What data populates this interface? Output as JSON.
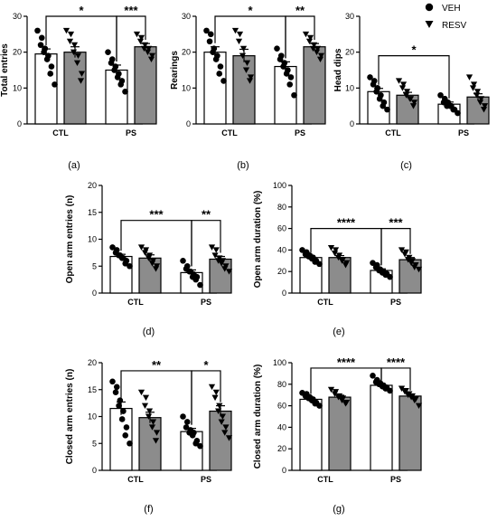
{
  "legend": {
    "items": [
      {
        "label": "VEH",
        "marker": "circle",
        "fill": "#ffffff"
      },
      {
        "label": "RESV",
        "marker": "triangle",
        "fill": "#8c8c8c"
      }
    ]
  },
  "chart_data": [
    {
      "type": "bar",
      "panel": "(a)",
      "ylabel": "Total entries",
      "ylim": [
        0,
        30
      ],
      "yticks": [
        0,
        10,
        20,
        30
      ],
      "categories": [
        "CTL",
        "PS"
      ],
      "series": [
        {
          "name": "VEH",
          "values": [
            19.5,
            15
          ],
          "sem": [
            1.4,
            1.4
          ],
          "points": [
            [
              26,
              24,
              22,
              21,
              20,
              19,
              18,
              16,
              14,
              11
            ],
            [
              20,
              18,
              17,
              16,
              15,
              14,
              13,
              12,
              11,
              9
            ]
          ]
        },
        {
          "name": "RESV",
          "values": [
            20,
            21.5
          ],
          "sem": [
            1.5,
            0.9
          ],
          "points": [
            [
              26,
              25,
              23,
              22,
              20,
              19,
              17,
              14,
              12
            ],
            [
              25,
              24,
              23,
              22,
              21,
              21,
              20,
              19,
              18
            ]
          ]
        }
      ],
      "significance": [
        {
          "from": [
            0,
            0
          ],
          "to": [
            1,
            0
          ],
          "label": "*",
          "y": 30
        },
        {
          "from": [
            1,
            0
          ],
          "to": [
            1,
            1
          ],
          "label": "***",
          "y": 30
        }
      ]
    },
    {
      "type": "bar",
      "panel": "(b)",
      "ylabel": "Rearings",
      "ylim": [
        0,
        30
      ],
      "yticks": [
        0,
        10,
        20,
        30
      ],
      "categories": [
        "CTL",
        "PS"
      ],
      "series": [
        {
          "name": "VEH",
          "values": [
            20,
            16
          ],
          "sem": [
            1.5,
            1.3
          ],
          "points": [
            [
              26,
              25,
              23,
              21,
              20,
              19,
              18,
              16,
              14,
              12
            ],
            [
              21,
              19,
              18,
              17,
              16,
              15,
              14,
              13,
              11,
              8
            ]
          ]
        },
        {
          "name": "RESV",
          "values": [
            19,
            21.5
          ],
          "sem": [
            1.8,
            0.9
          ],
          "points": [
            [
              26,
              25,
              23,
              21,
              19,
              17,
              15,
              13,
              12
            ],
            [
              25,
              24,
              23,
              22,
              21,
              21,
              20,
              19,
              18
            ]
          ]
        }
      ],
      "significance": [
        {
          "from": [
            0,
            0
          ],
          "to": [
            1,
            0
          ],
          "label": "*",
          "y": 30
        },
        {
          "from": [
            1,
            0
          ],
          "to": [
            1,
            1
          ],
          "label": "**",
          "y": 30
        }
      ]
    },
    {
      "type": "bar",
      "panel": "(c)",
      "ylabel": "Head dips",
      "ylim": [
        0,
        30
      ],
      "yticks": [
        0,
        10,
        20,
        30
      ],
      "categories": [
        "CTL",
        "PS"
      ],
      "series": [
        {
          "name": "VEH",
          "values": [
            9,
            5.5
          ],
          "sem": [
            0.9,
            0.6
          ],
          "points": [
            [
              13,
              12,
              11,
              10,
              9,
              8,
              7,
              6,
              5,
              4
            ],
            [
              8,
              7,
              6,
              6,
              5,
              5,
              5,
              4,
              4,
              3
            ]
          ]
        },
        {
          "name": "RESV",
          "values": [
            8,
            7.5
          ],
          "sem": [
            0.8,
            0.9
          ],
          "points": [
            [
              12,
              11,
              10,
              9,
              8,
              7,
              7,
              6,
              5
            ],
            [
              13,
              11,
              10,
              9,
              8,
              7,
              6,
              5,
              4
            ]
          ]
        }
      ],
      "significance": [
        {
          "from": [
            0,
            0
          ],
          "to": [
            1,
            0
          ],
          "label": "*",
          "y": 19
        }
      ]
    },
    {
      "type": "bar",
      "panel": "(d)",
      "ylabel": "Open arm entries (n)",
      "ylim": [
        0,
        20
      ],
      "yticks": [
        0,
        5,
        10,
        15,
        20
      ],
      "categories": [
        "CTL",
        "PS"
      ],
      "series": [
        {
          "name": "VEH",
          "values": [
            6.8,
            3.8
          ],
          "sem": [
            0.4,
            0.5
          ],
          "points": [
            [
              8.5,
              8,
              7.5,
              7,
              7,
              6.5,
              6.5,
              6,
              5.5,
              5
            ],
            [
              6,
              5,
              4.5,
              4,
              4,
              3.5,
              3,
              3,
              2.5,
              1.5
            ]
          ]
        },
        {
          "name": "RESV",
          "values": [
            6.5,
            6.3
          ],
          "sem": [
            0.6,
            0.5
          ],
          "points": [
            [
              8.5,
              8,
              7.5,
              7,
              6.5,
              6,
              5.5,
              5,
              4.5
            ],
            [
              8.5,
              8,
              7,
              6.5,
              6,
              6,
              5.5,
              5,
              4.5,
              4
            ]
          ]
        }
      ],
      "significance": [
        {
          "from": [
            0,
            0
          ],
          "to": [
            1,
            0
          ],
          "label": "***",
          "y": 13.5
        },
        {
          "from": [
            1,
            0
          ],
          "to": [
            1,
            1
          ],
          "label": "**",
          "y": 13.5
        }
      ]
    },
    {
      "type": "bar",
      "panel": "(e)",
      "ylabel": "Open arm duration (%)",
      "ylim": [
        0,
        100
      ],
      "yticks": [
        0,
        20,
        40,
        60,
        80,
        100
      ],
      "categories": [
        "CTL",
        "PS"
      ],
      "series": [
        {
          "name": "VEH",
          "values": [
            33,
            21
          ],
          "sem": [
            1.5,
            1.5
          ],
          "points": [
            [
              40,
              38,
              36,
              35,
              34,
              33,
              32,
              30,
              29,
              27
            ],
            [
              28,
              26,
              24,
              22,
              21,
              20,
              19,
              18,
              17,
              15
            ]
          ]
        },
        {
          "name": "RESV",
          "values": [
            33,
            31
          ],
          "sem": [
            1.8,
            2.0
          ],
          "points": [
            [
              42,
              40,
              37,
              35,
              33,
              31,
              30,
              28,
              26
            ],
            [
              40,
              38,
              36,
              33,
              31,
              30,
              28,
              26,
              24,
              22
            ]
          ]
        }
      ],
      "significance": [
        {
          "from": [
            0,
            0
          ],
          "to": [
            1,
            0
          ],
          "label": "****",
          "y": 60
        },
        {
          "from": [
            1,
            0
          ],
          "to": [
            1,
            1
          ],
          "label": "***",
          "y": 60
        }
      ]
    },
    {
      "type": "bar",
      "panel": "(f)",
      "ylabel": "Closed arm entries (n)",
      "ylim": [
        0,
        20
      ],
      "yticks": [
        0,
        5,
        10,
        15,
        20
      ],
      "categories": [
        "CTL",
        "PS"
      ],
      "series": [
        {
          "name": "VEH",
          "values": [
            11.5,
            7.2
          ],
          "sem": [
            1.2,
            0.6
          ],
          "points": [
            [
              16.5,
              15.5,
              14.5,
              13,
              12,
              11,
              9.5,
              8,
              6.5,
              5
            ],
            [
              10,
              9,
              8,
              7.5,
              7,
              7,
              6.5,
              5.5,
              5,
              4.5
            ]
          ]
        },
        {
          "name": "RESV",
          "values": [
            9.8,
            11
          ],
          "sem": [
            1.0,
            1.0
          ],
          "points": [
            [
              14.5,
              13.5,
              12,
              11,
              10,
              9,
              8,
              7,
              5.5
            ],
            [
              15.5,
              14.5,
              13.5,
              12,
              11,
              10,
              9,
              8,
              7,
              6
            ]
          ]
        }
      ],
      "significance": [
        {
          "from": [
            0,
            0
          ],
          "to": [
            1,
            0
          ],
          "label": "**",
          "y": 18.5
        },
        {
          "from": [
            1,
            0
          ],
          "to": [
            1,
            1
          ],
          "label": "*",
          "y": 18.5
        }
      ]
    },
    {
      "type": "bar",
      "panel": "(g)",
      "ylabel": "Closed arm duration (%)",
      "ylim": [
        0,
        100
      ],
      "yticks": [
        0,
        20,
        40,
        60,
        80,
        100
      ],
      "categories": [
        "CTL",
        "PS"
      ],
      "series": [
        {
          "name": "VEH",
          "values": [
            66,
            79
          ],
          "sem": [
            1.6,
            1.3
          ],
          "points": [
            [
              72,
              71,
              69,
              68,
              67,
              66,
              65,
              63,
              62,
              60
            ],
            [
              88,
              84,
              82,
              81,
              80,
              79,
              78,
              77,
              76,
              74
            ]
          ]
        },
        {
          "name": "RESV",
          "values": [
            68,
            69
          ],
          "sem": [
            1.8,
            1.8
          ],
          "points": [
            [
              75,
              73,
              71,
              69,
              68,
              67,
              65,
              63,
              62
            ],
            [
              76,
              74,
              73,
              71,
              70,
              69,
              68,
              66,
              65,
              60
            ]
          ]
        }
      ],
      "significance": [
        {
          "from": [
            0,
            0
          ],
          "to": [
            1,
            0
          ],
          "label": "****",
          "y": 95
        },
        {
          "from": [
            1,
            0
          ],
          "to": [
            1,
            1
          ],
          "label": "****",
          "y": 95
        }
      ]
    }
  ]
}
